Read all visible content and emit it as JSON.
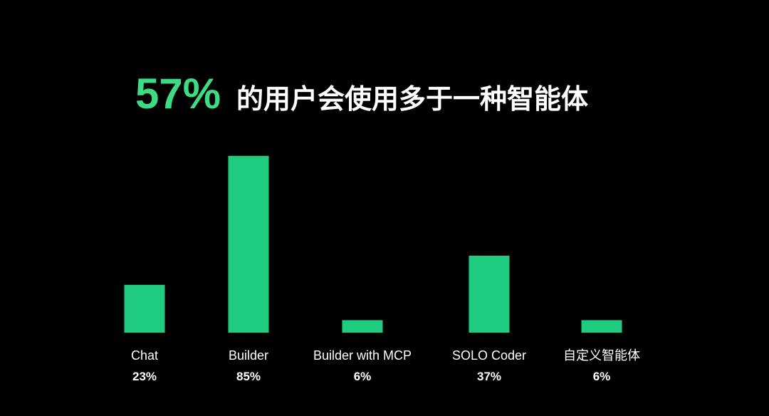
{
  "chart_data": {
    "type": "bar",
    "title_highlight": "57%",
    "title": "的用户会使用多于一种智能体",
    "highlight_color": "#3ddc84",
    "categories": [
      "Chat",
      "Builder",
      "Builder with MCP",
      "SOLO Coder",
      "自定义智能体"
    ],
    "values": [
      23,
      85,
      6,
      37,
      6
    ],
    "value_labels": [
      "23%",
      "85%",
      "6%",
      "37%",
      "6%"
    ],
    "color": "#1ecb7f"
  }
}
